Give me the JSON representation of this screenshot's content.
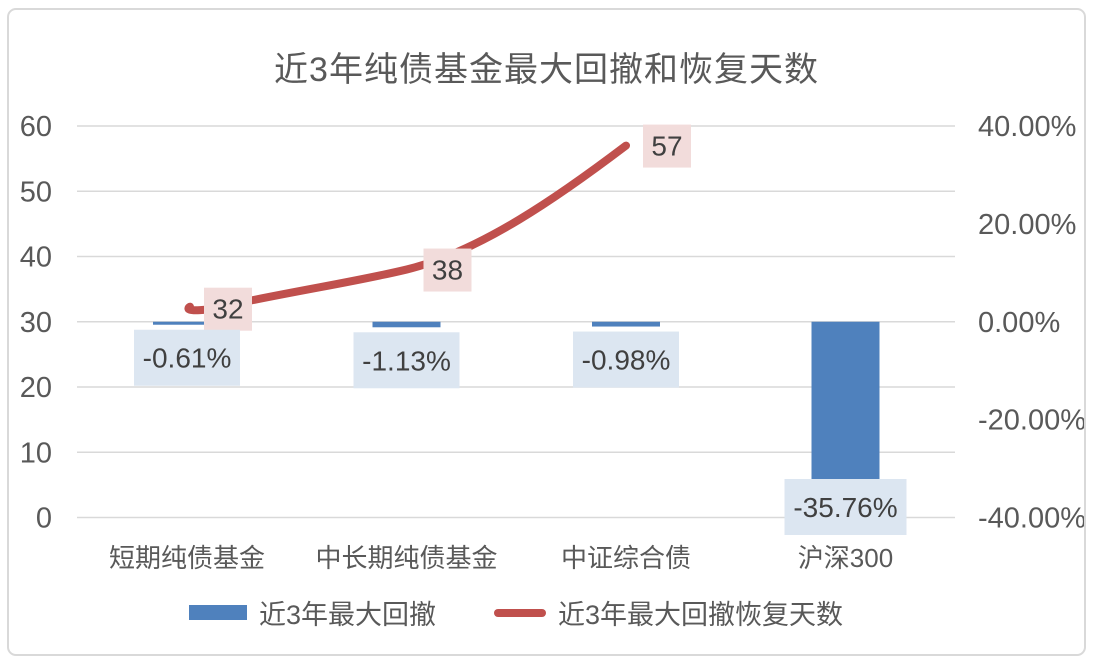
{
  "chart_data": {
    "type": "combo-bar-line",
    "title": "近3年纯债基金最大回撤和恢复天数",
    "categories": [
      "短期纯债基金",
      "中长期纯债基金",
      "中证综合债",
      "沪深300"
    ],
    "series": [
      {
        "name": "近3年最大回撤",
        "type": "bar",
        "axis": "right",
        "values": [
          -0.61,
          -1.13,
          -0.98,
          -35.76
        ],
        "labels": [
          "-0.61%",
          "-1.13%",
          "-0.98%",
          "-35.76%"
        ],
        "color": "#4F81BD",
        "label_bg": "#DCE6F1"
      },
      {
        "name": "近3年最大回撤恢复天数",
        "type": "line",
        "axis": "left",
        "values": [
          32,
          38,
          57,
          null
        ],
        "labels": [
          "32",
          "38",
          "57"
        ],
        "color": "#C0504D",
        "label_bg": "#F2DCDB"
      }
    ],
    "left_axis": {
      "min": 0,
      "max": 60,
      "ticks": [
        "60",
        "50",
        "40",
        "30",
        "20",
        "10",
        "0"
      ]
    },
    "right_axis": {
      "min": -40,
      "max": 40,
      "ticks": [
        "40.00%",
        "20.00%",
        "0.00%",
        "-20.00%",
        "-40.00%"
      ]
    },
    "grid": true,
    "legend_position": "bottom"
  },
  "colors": {
    "bar": "#4F81BD",
    "line": "#C0504D",
    "bar_label_bg": "#DCE6F1",
    "line_label_bg": "#F2DCDB",
    "label_text": "#404040",
    "axis_text": "#595959",
    "gridline": "#D9D9D9",
    "border": "#D9D9D9",
    "background": "#FFFFFF"
  }
}
